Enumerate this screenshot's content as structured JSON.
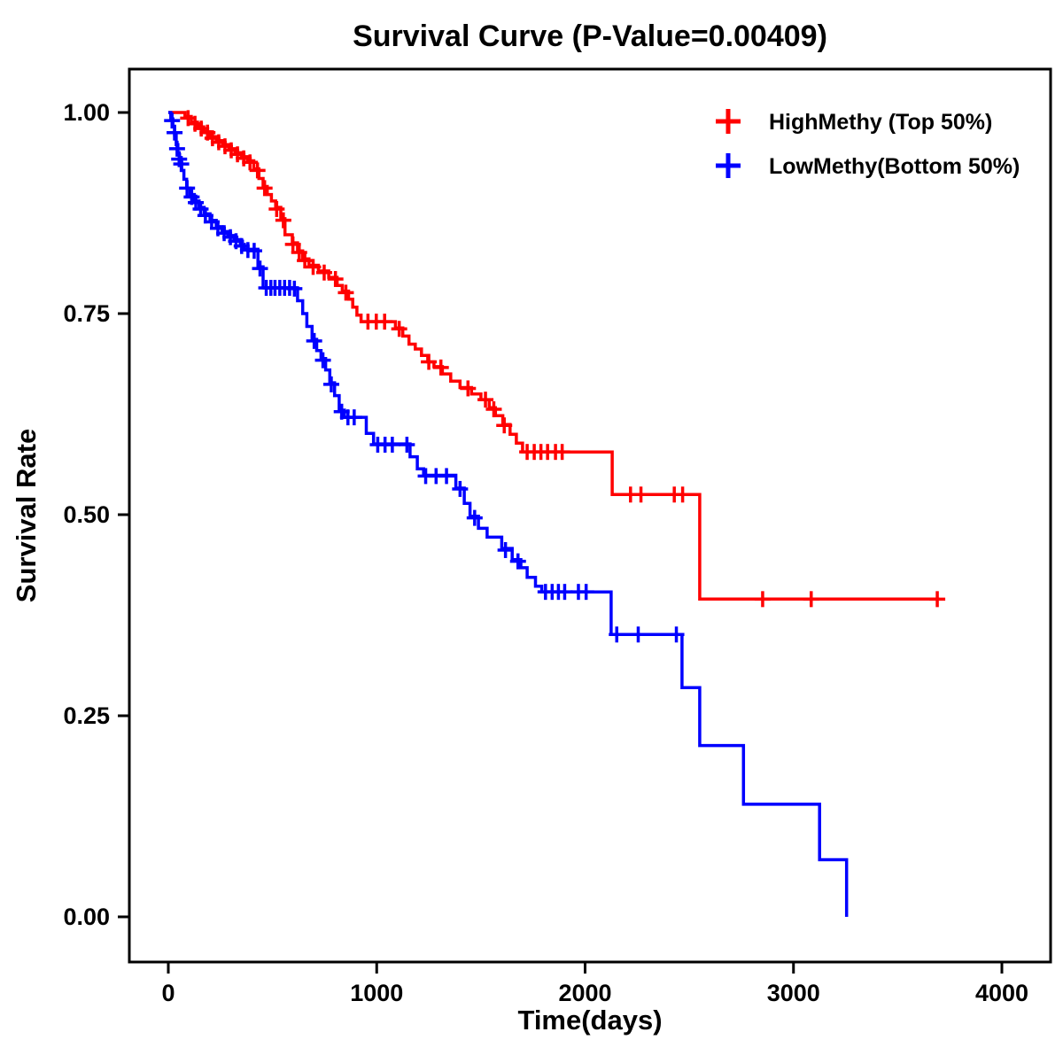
{
  "page": {
    "background": "#ffffff",
    "frame_color": "#000000"
  },
  "chart_data": {
    "type": "line",
    "chart_style": "kaplan-meier-step",
    "title": "Survival Curve (P-Value=0.00409)",
    "p_value": "0.00409",
    "xlabel": "Time(days)",
    "ylabel": "Survival Rate",
    "xlim": [
      0,
      4000
    ],
    "ylim": [
      0,
      1
    ],
    "xticks": [
      0,
      1000,
      2000,
      3000,
      4000
    ],
    "yticks": [
      0,
      0.25,
      0.5,
      0.75,
      1
    ],
    "grid": false,
    "legend_position": "top-right",
    "series": [
      {
        "name": "HighMethy (Top 50%)",
        "color": "#FF0000",
        "steps": [
          [
            0,
            1.0
          ],
          [
            80,
            0.995
          ],
          [
            110,
            0.988
          ],
          [
            140,
            0.982
          ],
          [
            170,
            0.976
          ],
          [
            200,
            0.97
          ],
          [
            230,
            0.965
          ],
          [
            260,
            0.96
          ],
          [
            290,
            0.955
          ],
          [
            320,
            0.95
          ],
          [
            350,
            0.945
          ],
          [
            380,
            0.94
          ],
          [
            410,
            0.93
          ],
          [
            435,
            0.918
          ],
          [
            455,
            0.908
          ],
          [
            475,
            0.898
          ],
          [
            495,
            0.89
          ],
          [
            515,
            0.882
          ],
          [
            540,
            0.868
          ],
          [
            560,
            0.848
          ],
          [
            595,
            0.838
          ],
          [
            620,
            0.828
          ],
          [
            645,
            0.818
          ],
          [
            675,
            0.81
          ],
          [
            720,
            0.803
          ],
          [
            770,
            0.795
          ],
          [
            810,
            0.785
          ],
          [
            835,
            0.778
          ],
          [
            865,
            0.768
          ],
          [
            885,
            0.758
          ],
          [
            905,
            0.748
          ],
          [
            925,
            0.74
          ],
          [
            1090,
            0.732
          ],
          [
            1125,
            0.722
          ],
          [
            1155,
            0.712
          ],
          [
            1185,
            0.706
          ],
          [
            1215,
            0.698
          ],
          [
            1245,
            0.69
          ],
          [
            1275,
            0.684
          ],
          [
            1315,
            0.675
          ],
          [
            1355,
            0.666
          ],
          [
            1400,
            0.658
          ],
          [
            1455,
            0.65
          ],
          [
            1500,
            0.643
          ],
          [
            1540,
            0.633
          ],
          [
            1570,
            0.623
          ],
          [
            1605,
            0.612
          ],
          [
            1640,
            0.6
          ],
          [
            1670,
            0.589
          ],
          [
            1700,
            0.578
          ],
          [
            2130,
            0.525
          ],
          [
            2550,
            0.395
          ],
          [
            3700,
            0.395
          ]
        ],
        "censors": [
          [
            95,
            0.993
          ],
          [
            128,
            0.986
          ],
          [
            158,
            0.98
          ],
          [
            188,
            0.975
          ],
          [
            212,
            0.968
          ],
          [
            242,
            0.963
          ],
          [
            272,
            0.958
          ],
          [
            302,
            0.953
          ],
          [
            332,
            0.948
          ],
          [
            362,
            0.943
          ],
          [
            392,
            0.938
          ],
          [
            428,
            0.928
          ],
          [
            462,
            0.906
          ],
          [
            520,
            0.88
          ],
          [
            552,
            0.866
          ],
          [
            598,
            0.836
          ],
          [
            628,
            0.826
          ],
          [
            655,
            0.816
          ],
          [
            695,
            0.808
          ],
          [
            748,
            0.801
          ],
          [
            802,
            0.793
          ],
          [
            852,
            0.776
          ],
          [
            958,
            0.74
          ],
          [
            998,
            0.74
          ],
          [
            1038,
            0.74
          ],
          [
            1108,
            0.731
          ],
          [
            1250,
            0.69
          ],
          [
            1308,
            0.683
          ],
          [
            1438,
            0.657
          ],
          [
            1522,
            0.643
          ],
          [
            1562,
            0.631
          ],
          [
            1612,
            0.611
          ],
          [
            1722,
            0.578
          ],
          [
            1756,
            0.578
          ],
          [
            1788,
            0.578
          ],
          [
            1820,
            0.578
          ],
          [
            1858,
            0.578
          ],
          [
            1890,
            0.578
          ],
          [
            2218,
            0.525
          ],
          [
            2268,
            0.525
          ],
          [
            2428,
            0.525
          ],
          [
            2468,
            0.525
          ],
          [
            2852,
            0.395
          ],
          [
            3085,
            0.395
          ],
          [
            3690,
            0.395
          ]
        ]
      },
      {
        "name": "LowMethy(Bottom 50%)",
        "color": "#0000FF",
        "steps": [
          [
            0,
            1.0
          ],
          [
            12,
            0.992
          ],
          [
            22,
            0.982
          ],
          [
            30,
            0.972
          ],
          [
            38,
            0.96
          ],
          [
            46,
            0.948
          ],
          [
            54,
            0.938
          ],
          [
            64,
            0.928
          ],
          [
            75,
            0.917
          ],
          [
            88,
            0.906
          ],
          [
            105,
            0.898
          ],
          [
            125,
            0.89
          ],
          [
            148,
            0.882
          ],
          [
            172,
            0.874
          ],
          [
            200,
            0.866
          ],
          [
            230,
            0.858
          ],
          [
            258,
            0.852
          ],
          [
            285,
            0.847
          ],
          [
            315,
            0.842
          ],
          [
            345,
            0.836
          ],
          [
            365,
            0.83
          ],
          [
            430,
            0.808
          ],
          [
            455,
            0.782
          ],
          [
            620,
            0.766
          ],
          [
            645,
            0.75
          ],
          [
            665,
            0.734
          ],
          [
            690,
            0.718
          ],
          [
            712,
            0.704
          ],
          [
            733,
            0.694
          ],
          [
            755,
            0.68
          ],
          [
            775,
            0.664
          ],
          [
            798,
            0.648
          ],
          [
            820,
            0.63
          ],
          [
            845,
            0.621
          ],
          [
            950,
            0.601
          ],
          [
            985,
            0.588
          ],
          [
            1160,
            0.572
          ],
          [
            1195,
            0.557
          ],
          [
            1225,
            0.549
          ],
          [
            1380,
            0.533
          ],
          [
            1420,
            0.514
          ],
          [
            1448,
            0.498
          ],
          [
            1488,
            0.483
          ],
          [
            1530,
            0.472
          ],
          [
            1600,
            0.458
          ],
          [
            1650,
            0.444
          ],
          [
            1692,
            0.434
          ],
          [
            1722,
            0.422
          ],
          [
            1762,
            0.411
          ],
          [
            1792,
            0.404
          ],
          [
            2125,
            0.351
          ],
          [
            2465,
            0.285
          ],
          [
            2550,
            0.213
          ],
          [
            2760,
            0.14
          ],
          [
            3125,
            0.071
          ],
          [
            3255,
            0.0
          ]
        ],
        "censors": [
          [
            18,
            0.99
          ],
          [
            30,
            0.975
          ],
          [
            42,
            0.955
          ],
          [
            52,
            0.942
          ],
          [
            62,
            0.936
          ],
          [
            90,
            0.906
          ],
          [
            112,
            0.895
          ],
          [
            132,
            0.888
          ],
          [
            155,
            0.88
          ],
          [
            178,
            0.872
          ],
          [
            208,
            0.864
          ],
          [
            238,
            0.856
          ],
          [
            268,
            0.85
          ],
          [
            298,
            0.845
          ],
          [
            325,
            0.84
          ],
          [
            352,
            0.834
          ],
          [
            382,
            0.829
          ],
          [
            412,
            0.828
          ],
          [
            440,
            0.806
          ],
          [
            470,
            0.782
          ],
          [
            492,
            0.782
          ],
          [
            512,
            0.782
          ],
          [
            535,
            0.782
          ],
          [
            558,
            0.782
          ],
          [
            582,
            0.782
          ],
          [
            605,
            0.781
          ],
          [
            700,
            0.716
          ],
          [
            742,
            0.692
          ],
          [
            782,
            0.662
          ],
          [
            832,
            0.628
          ],
          [
            862,
            0.621
          ],
          [
            892,
            0.621
          ],
          [
            1005,
            0.587
          ],
          [
            1040,
            0.587
          ],
          [
            1075,
            0.587
          ],
          [
            1145,
            0.587
          ],
          [
            1235,
            0.548
          ],
          [
            1285,
            0.548
          ],
          [
            1335,
            0.548
          ],
          [
            1400,
            0.532
          ],
          [
            1470,
            0.496
          ],
          [
            1618,
            0.456
          ],
          [
            1678,
            0.442
          ],
          [
            1810,
            0.404
          ],
          [
            1842,
            0.404
          ],
          [
            1872,
            0.404
          ],
          [
            1902,
            0.404
          ],
          [
            1968,
            0.404
          ],
          [
            2005,
            0.404
          ],
          [
            2152,
            0.351
          ],
          [
            2255,
            0.351
          ],
          [
            2438,
            0.351
          ]
        ]
      }
    ]
  }
}
